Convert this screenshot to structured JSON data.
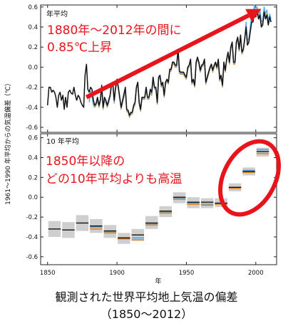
{
  "caption": {
    "line1": "観測された世界平均地上気温の偏差",
    "line2": "（1850～2012）"
  },
  "shared_ylabel": "1961～1990 年平均からの気温偏差（℃）",
  "colors": {
    "black": "#111111",
    "orange": "#e08a2c",
    "blue": "#5aa9e6",
    "red": "#e8141b",
    "band": "#cfcfcf"
  },
  "chart_data": [
    {
      "type": "line",
      "panel_label": "年平均",
      "annotation": [
        "1880年～2012年の間に",
        "0.85℃上昇"
      ],
      "annotation_arrow": {
        "from": [
          1878,
          -0.3
        ],
        "to": [
          2004,
          0.58
        ]
      },
      "xlim": [
        1845,
        2015
      ],
      "ylim": [
        -0.65,
        0.62
      ],
      "yticks": [
        -0.6,
        -0.4,
        -0.2,
        0.0,
        0.2,
        0.4,
        0.6
      ],
      "xticks": [
        1850,
        1900,
        1950,
        2000
      ],
      "series": [
        {
          "color": "black",
          "start": 1850,
          "values": [
            -0.38,
            -0.2,
            -0.2,
            -0.25,
            -0.23,
            -0.25,
            -0.3,
            -0.4,
            -0.28,
            -0.25,
            -0.33,
            -0.28,
            -0.42,
            -0.3,
            -0.4,
            -0.25,
            -0.23,
            -0.26,
            -0.27,
            -0.2,
            -0.28,
            -0.33,
            -0.28,
            -0.3,
            -0.35,
            -0.38,
            -0.4,
            -0.08,
            0.03,
            -0.22,
            -0.25,
            -0.2,
            -0.22,
            -0.33,
            -0.38,
            -0.36,
            -0.3,
            -0.38,
            -0.33,
            -0.18,
            -0.4,
            -0.3,
            -0.33,
            -0.38,
            -0.33,
            -0.28,
            -0.17,
            -0.15,
            -0.33,
            -0.2,
            -0.12,
            -0.2,
            -0.3,
            -0.4,
            -0.33,
            -0.27,
            -0.2,
            -0.42,
            -0.43,
            -0.48,
            -0.45,
            -0.45,
            -0.38,
            -0.35,
            -0.2,
            -0.15,
            -0.35,
            -0.42,
            -0.3,
            -0.3,
            -0.3,
            -0.2,
            -0.3,
            -0.3,
            -0.22,
            -0.25,
            -0.1,
            -0.2,
            -0.2,
            -0.35,
            -0.1,
            -0.08,
            -0.18,
            -0.15,
            -0.28,
            -0.15,
            -0.12,
            -0.15,
            -0.02,
            -0.02,
            0.05,
            0.05,
            0.02,
            0.02,
            0.18,
            -0.04,
            -0.05,
            -0.05,
            -0.05,
            -0.08,
            -0.1,
            0.0,
            0.02,
            0.08,
            -0.15,
            -0.12,
            -0.18,
            0.05,
            0.1,
            0.05,
            -0.03,
            0.02,
            0.03,
            0.08,
            -0.15,
            -0.1,
            -0.05,
            0.0,
            0.03,
            -0.03,
            0.02,
            0.05,
            0.0,
            0.08,
            -0.12,
            -0.08,
            -0.18,
            0.05,
            -0.03,
            0.08,
            0.15,
            0.05,
            0.2,
            0.25,
            0.05,
            0.05,
            0.25,
            0.3,
            0.18,
            0.32,
            0.15,
            0.18,
            0.28,
            0.4,
            0.22,
            0.25,
            0.35,
            0.45,
            0.45,
            0.55,
            0.5,
            0.55,
            0.48,
            0.52,
            0.4,
            0.42,
            0.55,
            0.48,
            0.52,
            0.42,
            0.5,
            0.45
          ]
        },
        {
          "color": "orange",
          "start": 1880,
          "values": [
            -0.35,
            -0.25,
            -0.3,
            -0.38,
            -0.4,
            -0.38,
            -0.33,
            -0.4,
            -0.35,
            -0.22,
            -0.42,
            -0.33,
            -0.36,
            -0.4,
            -0.36,
            -0.3,
            -0.2,
            -0.18,
            -0.36,
            -0.22,
            -0.15,
            -0.22,
            -0.32,
            -0.42,
            -0.36,
            -0.3,
            -0.23,
            -0.44,
            -0.45,
            -0.5,
            -0.47,
            -0.47,
            -0.4,
            -0.38,
            -0.22,
            -0.17,
            -0.37,
            -0.44,
            -0.32,
            -0.32,
            -0.32,
            -0.22,
            -0.32,
            -0.32,
            -0.25,
            -0.28,
            -0.12,
            -0.22,
            -0.22,
            -0.37,
            -0.12,
            -0.1,
            -0.2,
            -0.17,
            -0.3,
            -0.17,
            -0.14,
            -0.17,
            -0.04,
            -0.04,
            0.03,
            0.03,
            0.0,
            0.0,
            0.16,
            -0.06,
            -0.07,
            -0.07,
            -0.07,
            -0.1,
            -0.12,
            -0.02,
            0.0,
            0.06,
            -0.17,
            -0.14,
            -0.2,
            0.03,
            0.08,
            0.03,
            -0.05,
            0.0,
            0.01,
            0.06,
            -0.17,
            -0.12,
            -0.07,
            -0.02,
            0.01,
            -0.05,
            0.0,
            0.03,
            -0.02,
            0.06,
            -0.14,
            -0.1,
            -0.2,
            0.03,
            -0.05,
            0.06,
            0.13,
            0.03,
            0.18,
            0.23,
            0.03,
            0.03,
            0.23,
            0.28,
            0.16,
            0.3,
            0.13,
            0.16,
            0.26,
            0.42,
            0.22,
            0.25,
            0.36,
            0.47,
            0.47,
            0.58,
            0.52,
            0.58,
            0.5,
            0.54,
            0.42,
            0.44,
            0.56,
            0.5,
            0.53,
            0.43,
            0.5,
            0.45
          ]
        },
        {
          "color": "blue",
          "start": 1880,
          "values": [
            -0.34,
            -0.24,
            -0.29,
            -0.37,
            -0.39,
            -0.37,
            -0.32,
            -0.39,
            -0.34,
            -0.21,
            -0.41,
            -0.32,
            -0.35,
            -0.39,
            -0.35,
            -0.29,
            -0.19,
            -0.17,
            -0.35,
            -0.21,
            -0.14,
            -0.21,
            -0.31,
            -0.41,
            -0.35,
            -0.29,
            -0.22,
            -0.43,
            -0.44,
            -0.49,
            -0.46,
            -0.46,
            -0.39,
            -0.37,
            -0.21,
            -0.16,
            -0.36,
            -0.43,
            -0.31,
            -0.31,
            -0.31,
            -0.21,
            -0.31,
            -0.31,
            -0.24,
            -0.27,
            -0.11,
            -0.21,
            -0.21,
            -0.36,
            -0.11,
            -0.09,
            -0.19,
            -0.16,
            -0.29,
            -0.16,
            -0.13,
            -0.16,
            -0.03,
            -0.03,
            0.04,
            0.04,
            0.01,
            0.01,
            0.17,
            -0.05,
            -0.06,
            -0.06,
            -0.06,
            -0.09,
            -0.11,
            -0.01,
            0.01,
            0.07,
            -0.16,
            -0.13,
            -0.19,
            0.04,
            0.09,
            0.04,
            -0.04,
            0.01,
            0.02,
            0.07,
            -0.16,
            -0.11,
            -0.06,
            -0.01,
            0.02,
            -0.04,
            0.01,
            0.04,
            -0.01,
            0.07,
            -0.13,
            -0.09,
            -0.19,
            0.04,
            -0.04,
            0.07,
            0.14,
            0.04,
            0.19,
            0.24,
            0.04,
            0.04,
            0.24,
            0.29,
            0.17,
            0.31,
            0.14,
            0.17,
            0.27,
            0.45,
            0.26,
            0.29,
            0.4,
            0.52,
            0.5,
            0.62,
            0.55,
            0.6,
            0.53,
            0.58,
            0.45,
            0.47,
            0.6,
            0.53,
            0.57,
            0.46,
            0.53,
            0.48
          ]
        }
      ]
    },
    {
      "type": "bar",
      "panel_label": "10 年平均",
      "annotation": [
        "1850年以降の",
        "どの10年平均よりも高温"
      ],
      "xlim": [
        1845,
        2015
      ],
      "ylim": [
        -0.68,
        0.64
      ],
      "yticks": [
        -0.6,
        -0.4,
        -0.2,
        0.0,
        0.2,
        0.4,
        0.6
      ],
      "xticks": [
        1850,
        1900,
        1950,
        2000
      ],
      "xlabel": "年",
      "decades": [
        {
          "start": 1850,
          "black": -0.32,
          "low": -0.4,
          "high": -0.24
        },
        {
          "start": 1860,
          "black": -0.33,
          "low": -0.41,
          "high": -0.25
        },
        {
          "start": 1870,
          "black": -0.26,
          "low": -0.34,
          "high": -0.18
        },
        {
          "start": 1880,
          "black": -0.29,
          "orange": -0.32,
          "blue": -0.3,
          "low": -0.36,
          "high": -0.22
        },
        {
          "start": 1890,
          "black": -0.34,
          "orange": -0.36,
          "blue": -0.35,
          "low": -0.41,
          "high": -0.28
        },
        {
          "start": 1900,
          "black": -0.41,
          "orange": -0.42,
          "blue": -0.41,
          "low": -0.47,
          "high": -0.36
        },
        {
          "start": 1910,
          "black": -0.38,
          "orange": -0.43,
          "blue": -0.41,
          "low": -0.44,
          "high": -0.32
        },
        {
          "start": 1920,
          "black": -0.26,
          "orange": -0.28,
          "blue": -0.27,
          "low": -0.32,
          "high": -0.19
        },
        {
          "start": 1930,
          "black": -0.14,
          "orange": -0.16,
          "blue": -0.15,
          "low": -0.2,
          "high": -0.09
        },
        {
          "start": 1940,
          "black": 0.0,
          "orange": -0.02,
          "blue": -0.01,
          "low": -0.06,
          "high": 0.05
        },
        {
          "start": 1950,
          "black": -0.05,
          "orange": -0.07,
          "blue": -0.06,
          "low": -0.11,
          "high": 0.0
        },
        {
          "start": 1960,
          "black": -0.05,
          "orange": -0.08,
          "blue": -0.07,
          "low": -0.11,
          "high": -0.01
        },
        {
          "start": 1970,
          "black": -0.06,
          "orange": -0.07,
          "blue": -0.06,
          "low": -0.1,
          "high": -0.01
        },
        {
          "start": 1980,
          "black": 0.1,
          "orange": 0.09,
          "blue": 0.1,
          "low": 0.06,
          "high": 0.14
        },
        {
          "start": 1990,
          "black": 0.26,
          "orange": 0.25,
          "blue": 0.27,
          "low": 0.22,
          "high": 0.3
        },
        {
          "start": 2000,
          "black": 0.46,
          "orange": 0.44,
          "blue": 0.48,
          "low": 0.41,
          "high": 0.5
        }
      ]
    }
  ]
}
